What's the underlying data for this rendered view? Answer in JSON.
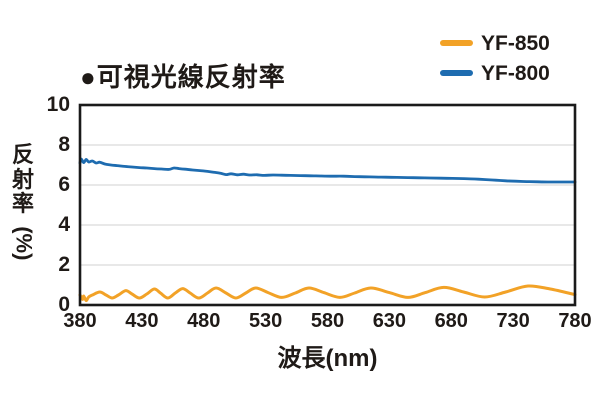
{
  "title": "●可視光線反射率",
  "legend": {
    "items": [
      {
        "label": "YF-850",
        "color": "#F2A227"
      },
      {
        "label": "YF-800",
        "color": "#1E6CB0"
      }
    ]
  },
  "chart_data": {
    "type": "line",
    "title": "可視光線反射率",
    "xlabel": "波長(nm)",
    "ylabel": "反射率(%)",
    "xlim": [
      380,
      780
    ],
    "ylim": [
      0,
      10
    ],
    "x_ticks": [
      380,
      430,
      480,
      530,
      580,
      630,
      680,
      730,
      780
    ],
    "y_ticks": [
      0,
      2,
      4,
      6,
      8,
      10
    ],
    "grid": "horizontal-only",
    "grid_color": "#d9d9d9",
    "axis_color": "#1a1a1a",
    "legend_position": "top-right",
    "series": [
      {
        "name": "YF-850",
        "color": "#F2A227",
        "width": 3,
        "smooth": true,
        "points": [
          [
            380,
            0.5
          ],
          [
            382,
            0.28
          ],
          [
            383,
            0.45
          ],
          [
            385,
            0.22
          ],
          [
            387,
            0.4
          ],
          [
            390,
            0.5
          ],
          [
            396,
            0.65
          ],
          [
            401,
            0.5
          ],
          [
            406,
            0.35
          ],
          [
            411,
            0.5
          ],
          [
            417,
            0.72
          ],
          [
            422,
            0.55
          ],
          [
            428,
            0.35
          ],
          [
            434,
            0.55
          ],
          [
            440,
            0.8
          ],
          [
            445,
            0.6
          ],
          [
            451,
            0.35
          ],
          [
            457,
            0.6
          ],
          [
            463,
            0.82
          ],
          [
            469,
            0.6
          ],
          [
            476,
            0.35
          ],
          [
            483,
            0.6
          ],
          [
            490,
            0.85
          ],
          [
            498,
            0.6
          ],
          [
            506,
            0.35
          ],
          [
            514,
            0.6
          ],
          [
            522,
            0.85
          ],
          [
            532,
            0.62
          ],
          [
            543,
            0.38
          ],
          [
            554,
            0.6
          ],
          [
            565,
            0.85
          ],
          [
            577,
            0.62
          ],
          [
            590,
            0.38
          ],
          [
            602,
            0.6
          ],
          [
            615,
            0.85
          ],
          [
            630,
            0.62
          ],
          [
            645,
            0.38
          ],
          [
            659,
            0.62
          ],
          [
            674,
            0.88
          ],
          [
            690,
            0.65
          ],
          [
            707,
            0.4
          ],
          [
            724,
            0.65
          ],
          [
            742,
            0.95
          ],
          [
            760,
            0.8
          ],
          [
            780,
            0.52
          ]
        ]
      },
      {
        "name": "YF-800",
        "color": "#1E6CB0",
        "width": 2.8,
        "smooth": true,
        "points": [
          [
            380,
            7.1
          ],
          [
            381,
            7.3
          ],
          [
            383,
            7.12
          ],
          [
            385,
            7.28
          ],
          [
            387,
            7.15
          ],
          [
            390,
            7.2
          ],
          [
            393,
            7.1
          ],
          [
            396,
            7.14
          ],
          [
            400,
            7.05
          ],
          [
            405,
            7.0
          ],
          [
            410,
            6.97
          ],
          [
            416,
            6.93
          ],
          [
            422,
            6.9
          ],
          [
            428,
            6.87
          ],
          [
            434,
            6.85
          ],
          [
            440,
            6.82
          ],
          [
            446,
            6.8
          ],
          [
            452,
            6.78
          ],
          [
            456,
            6.85
          ],
          [
            460,
            6.82
          ],
          [
            465,
            6.79
          ],
          [
            471,
            6.75
          ],
          [
            477,
            6.72
          ],
          [
            483,
            6.68
          ],
          [
            489,
            6.63
          ],
          [
            494,
            6.58
          ],
          [
            498,
            6.52
          ],
          [
            502,
            6.56
          ],
          [
            507,
            6.51
          ],
          [
            512,
            6.54
          ],
          [
            517,
            6.5
          ],
          [
            523,
            6.51
          ],
          [
            529,
            6.48
          ],
          [
            536,
            6.5
          ],
          [
            543,
            6.49
          ],
          [
            550,
            6.48
          ],
          [
            558,
            6.47
          ],
          [
            566,
            6.46
          ],
          [
            575,
            6.45
          ],
          [
            584,
            6.44
          ],
          [
            593,
            6.44
          ],
          [
            602,
            6.42
          ],
          [
            610,
            6.41
          ],
          [
            618,
            6.4
          ],
          [
            627,
            6.39
          ],
          [
            636,
            6.38
          ],
          [
            645,
            6.37
          ],
          [
            654,
            6.36
          ],
          [
            663,
            6.35
          ],
          [
            672,
            6.34
          ],
          [
            681,
            6.33
          ],
          [
            690,
            6.32
          ],
          [
            699,
            6.3
          ],
          [
            708,
            6.27
          ],
          [
            716,
            6.24
          ],
          [
            724,
            6.21
          ],
          [
            732,
            6.19
          ],
          [
            741,
            6.17
          ],
          [
            750,
            6.16
          ],
          [
            760,
            6.15
          ],
          [
            770,
            6.15
          ],
          [
            780,
            6.15
          ]
        ]
      }
    ]
  }
}
